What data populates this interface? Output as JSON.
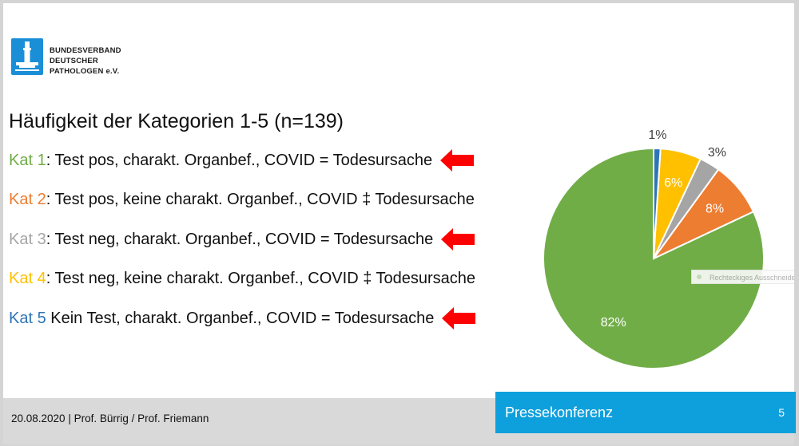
{
  "logo": {
    "lines": [
      "BUNDESVERBAND",
      "DEUTSCHER",
      "PATHOLOGEN e.V."
    ],
    "icon": "pathologen-logo-icon",
    "color": "#1a8ed6"
  },
  "title": "Häufigkeit der Kategorien 1-5 (n=139)",
  "categories": [
    {
      "label": "Kat 1",
      "text": ": Test pos, charakt. Organbef., COVID = Todesursache",
      "color": "#70ad47",
      "arrow": true
    },
    {
      "label": "Kat 2",
      "text": ": Test pos, keine charakt. Organbef., COVID ‡ Todesursache",
      "color": "#ed7d31",
      "arrow": false
    },
    {
      "label": "Kat 3",
      "text": ": Test neg, charakt. Organbef., COVID = Todesursache",
      "color": "#a5a5a5",
      "arrow": true
    },
    {
      "label": "Kat 4",
      "text": ": Test neg, keine charakt. Organbef., COVID ‡ Todesursache",
      "color": "#ffc000",
      "arrow": false
    },
    {
      "label": "Kat 5",
      "text": " Kein Test, charakt. Organbef., COVID = Todesursache",
      "color": "#2e75b6",
      "arrow": true
    }
  ],
  "arrow_color": "#ff0000",
  "chart_data": {
    "type": "pie",
    "title": "",
    "slices": [
      {
        "category": "Kat 1",
        "value": 82,
        "label": "82%",
        "color": "#70ad47"
      },
      {
        "category": "Kat 2",
        "value": 8,
        "label": "8%",
        "color": "#ed7d31"
      },
      {
        "category": "Kat 3",
        "value": 3,
        "label": "3%",
        "color": "#a5a5a5"
      },
      {
        "category": "Kat 4",
        "value": 6,
        "label": "6%",
        "color": "#ffc000"
      },
      {
        "category": "Kat 5",
        "value": 1,
        "label": "1%",
        "color": "#2e75b6"
      }
    ],
    "start": "12 o'clock",
    "direction": "counter-clockwise",
    "legend": "none"
  },
  "tooltip": "Rechteckiges Ausschneiden",
  "footer": {
    "text": "20.08.2020 | Prof. Bürrig / Prof. Friemann",
    "press": "Pressekonferenz",
    "page": "5",
    "accent": "#0ea0dc"
  }
}
